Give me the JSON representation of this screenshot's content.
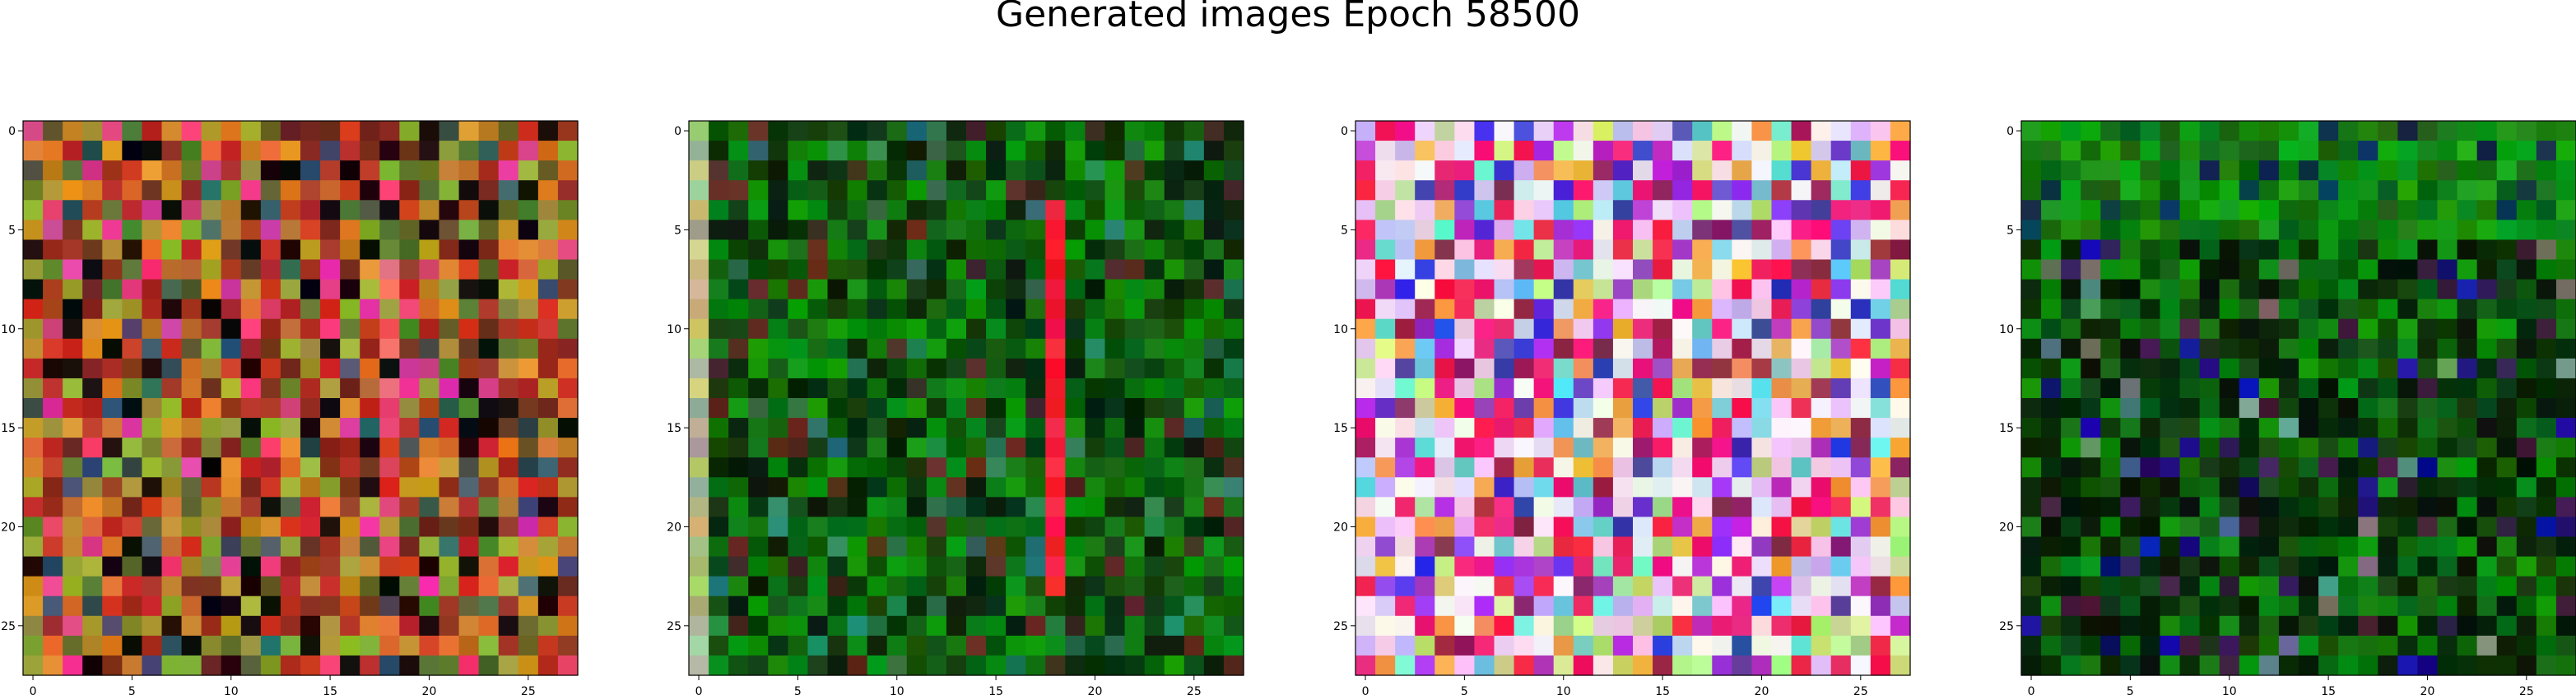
{
  "figure": {
    "title": "Generated images Epoch 58500"
  },
  "panels": [
    {
      "name": "image-1",
      "palette": "warm-noise",
      "xticks": [
        0,
        5,
        10,
        15,
        20,
        25
      ],
      "yticks": [
        0,
        5,
        10,
        15,
        20,
        25
      ]
    },
    {
      "name": "image-2",
      "palette": "green-red-stripe",
      "xticks": [
        0,
        5,
        10,
        15,
        20,
        25
      ],
      "yticks": [
        0,
        5,
        10,
        15,
        20,
        25
      ]
    },
    {
      "name": "image-3",
      "palette": "pastel-pink",
      "xticks": [
        0,
        5,
        10,
        15,
        20,
        25
      ],
      "yticks": [
        0,
        5,
        10,
        15,
        20,
        25
      ]
    },
    {
      "name": "image-4",
      "palette": "dark-green",
      "xticks": [
        0,
        5,
        10,
        15,
        20,
        25
      ],
      "yticks": [
        0,
        5,
        10,
        15,
        20,
        25
      ]
    }
  ],
  "grid": {
    "rows": 28,
    "cols": 28
  }
}
